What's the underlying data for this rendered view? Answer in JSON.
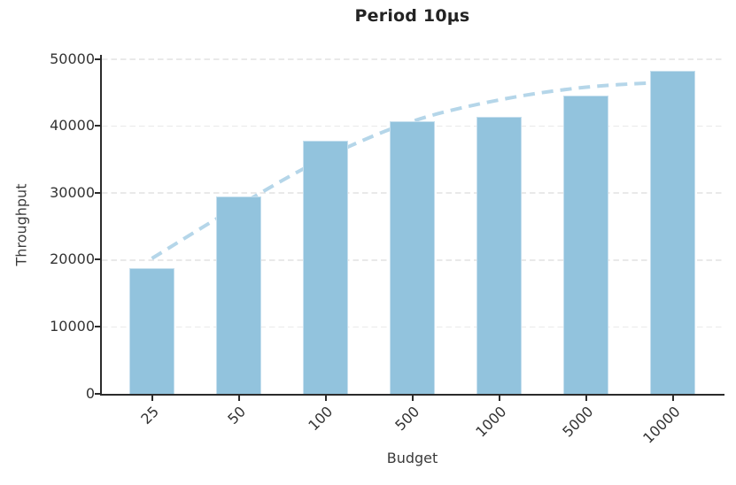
{
  "figure": {
    "title": "Period 10μs",
    "x_axis_label": "Budget",
    "y_axis_label": "Throughput"
  },
  "chart_data": {
    "type": "bar",
    "title": "Period 10μs",
    "xlabel": "Budget",
    "ylabel": "Throughput",
    "categories": [
      "25",
      "50",
      "100",
      "500",
      "1000",
      "5000",
      "10000"
    ],
    "series": [
      {
        "name": "throughput",
        "type": "bar",
        "values": [
          18800,
          29500,
          37800,
          40800,
          41400,
          44600,
          48300
        ]
      },
      {
        "name": "trend",
        "type": "dashed-line",
        "values": [
          20300,
          28200,
          35400,
          40800,
          44000,
          45900,
          46700
        ]
      }
    ],
    "ylim": [
      0,
      50000
    ],
    "yticks": [
      0,
      10000,
      20000,
      30000,
      40000,
      50000
    ],
    "grid": "horizontal-dashed",
    "legend_position": "none"
  },
  "colors": {
    "bar_fill": "#92c3dd",
    "bar_edge": "#c6dfee",
    "trend_line": "#b5d6e9",
    "gridline": "#e9e9e9",
    "axis_spine": "#2b2b2b",
    "tick_text": "#333333",
    "title_text": "#232323"
  }
}
